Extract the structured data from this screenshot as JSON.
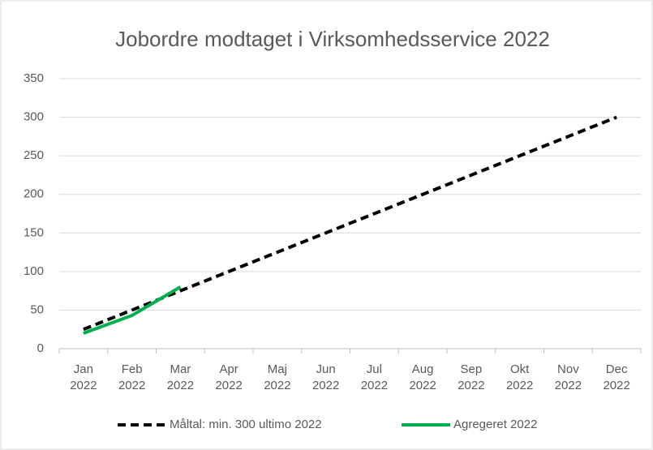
{
  "chart_data": {
    "type": "line",
    "title": "Jobordre modtaget i Virksomhedsservice  2022",
    "categories": [
      "Jan\n2022",
      "Feb\n2022",
      "Mar\n2022",
      "Apr\n2022",
      "Maj\n2022",
      "Jun\n2022",
      "Jul\n2022",
      "Aug\n2022",
      "Sep\n2022",
      "Okt\n2022",
      "Nov\n2022",
      "Dec\n2022"
    ],
    "series": [
      {
        "name": "Måltal: min. 300 ultimo 2022",
        "color": "#000000",
        "dashed": true,
        "values": [
          25,
          50,
          75,
          100,
          125,
          150,
          175,
          200,
          225,
          250,
          275,
          300
        ]
      },
      {
        "name": "Agregeret 2022",
        "color": "#00b050",
        "dashed": false,
        "values": [
          20,
          43,
          80,
          null,
          null,
          null,
          null,
          null,
          null,
          null,
          null,
          null
        ]
      }
    ],
    "ylim": [
      0,
      350
    ],
    "yticks": [
      0,
      50,
      100,
      150,
      200,
      250,
      300,
      350
    ],
    "grid": true,
    "legend": "bottom"
  }
}
